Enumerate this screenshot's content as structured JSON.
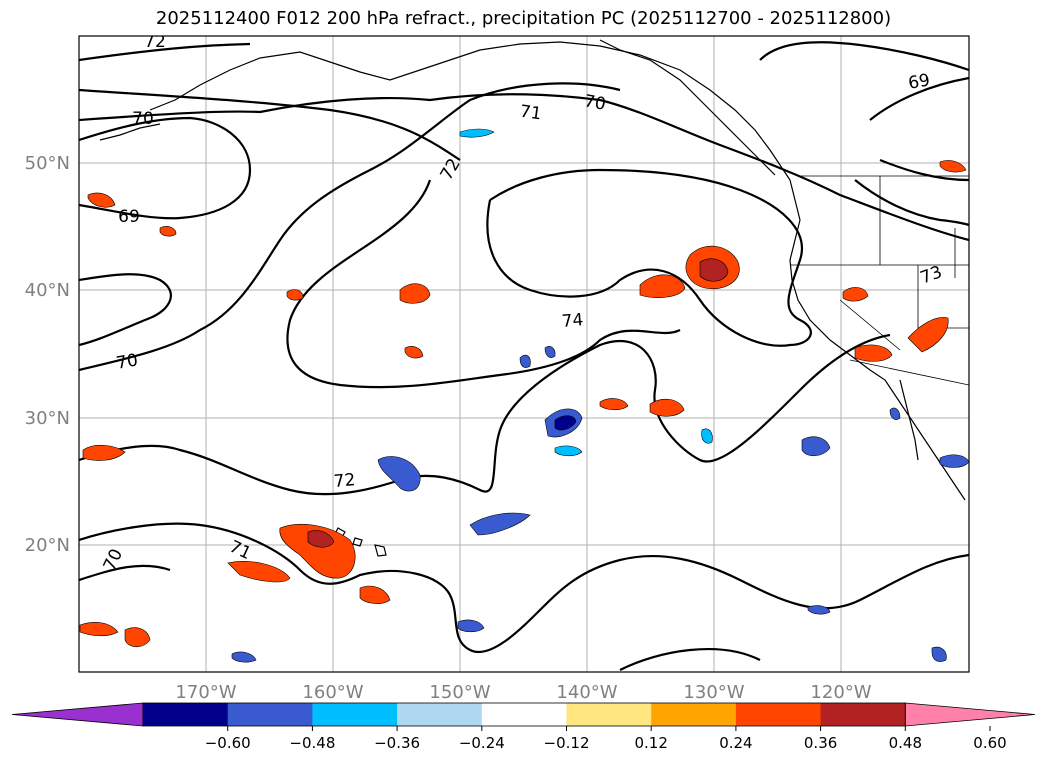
{
  "title": "2025112400 F012 200 hPa refract., precipitation PC (2025112700 - 2025112800)",
  "map": {
    "lat_labels": [
      "50°N",
      "40°N",
      "30°N",
      "20°N"
    ],
    "lon_labels": [
      "170°W",
      "160°W",
      "150°W",
      "140°W",
      "130°W",
      "120°W"
    ],
    "contour_labels": [
      "72",
      "70",
      "71",
      "70",
      "69",
      "72",
      "69",
      "70",
      "74",
      "72",
      "70",
      "71",
      "73"
    ]
  },
  "colorbar": {
    "colors": [
      "#9b30d0",
      "#00008b",
      "#3a5bd0",
      "#00bfff",
      "#add8f0",
      "#ffffff",
      "#ffe680",
      "#ffa500",
      "#ff4500",
      "#b22222",
      "#ff80a8"
    ],
    "ticks": [
      "−0.60",
      "−0.48",
      "−0.36",
      "−0.24",
      "−0.12",
      "0.12",
      "0.24",
      "0.36",
      "0.48",
      "0.60"
    ]
  }
}
